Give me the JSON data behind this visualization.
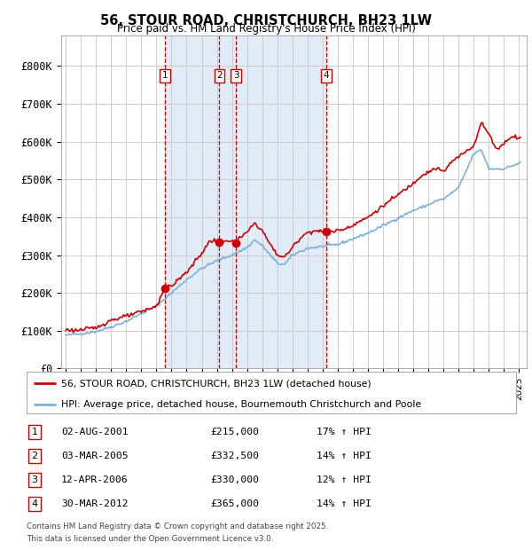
{
  "title": "56, STOUR ROAD, CHRISTCHURCH, BH23 1LW",
  "subtitle": "Price paid vs. HM Land Registry's House Price Index (HPI)",
  "legend_line1": "56, STOUR ROAD, CHRISTCHURCH, BH23 1LW (detached house)",
  "legend_line2": "HPI: Average price, detached house, Bournemouth Christchurch and Poole",
  "footer1": "Contains HM Land Registry data © Crown copyright and database right 2025.",
  "footer2": "This data is licensed under the Open Government Licence v3.0.",
  "transactions": [
    {
      "num": 1,
      "date": "02-AUG-2001",
      "price": "£215,000",
      "hpi": "17% ↑ HPI",
      "year": 2001.58
    },
    {
      "num": 2,
      "date": "03-MAR-2005",
      "price": "£332,500",
      "hpi": "14% ↑ HPI",
      "year": 2005.17
    },
    {
      "num": 3,
      "date": "12-APR-2006",
      "price": "£330,000",
      "hpi": "12% ↑ HPI",
      "year": 2006.28
    },
    {
      "num": 4,
      "date": "30-MAR-2012",
      "price": "£365,000",
      "hpi": "14% ↑ HPI",
      "year": 2012.25
    }
  ],
  "hpi_color": "#7ab0d8",
  "price_color": "#cc0000",
  "dot_color": "#cc0000",
  "vline_color": "#cc0000",
  "bg_shade_color": "#dce9f7",
  "grid_color": "#cccccc",
  "ylim": [
    0,
    880000
  ],
  "yticks": [
    0,
    100000,
    200000,
    300000,
    400000,
    500000,
    600000,
    700000,
    800000
  ],
  "ytick_labels": [
    "£0",
    "£100K",
    "£200K",
    "£300K",
    "£400K",
    "£500K",
    "£600K",
    "£700K",
    "£800K"
  ],
  "xlim_start": 1994.7,
  "xlim_end": 2025.5,
  "hpi_anchors": [
    [
      1995.0,
      88000
    ],
    [
      1996.0,
      92000
    ],
    [
      1997.0,
      98000
    ],
    [
      1998.0,
      110000
    ],
    [
      1999.0,
      125000
    ],
    [
      2000.0,
      145000
    ],
    [
      2001.0,
      165000
    ],
    [
      2002.0,
      200000
    ],
    [
      2003.0,
      235000
    ],
    [
      2004.0,
      265000
    ],
    [
      2005.0,
      285000
    ],
    [
      2006.0,
      300000
    ],
    [
      2007.0,
      320000
    ],
    [
      2007.5,
      340000
    ],
    [
      2008.0,
      325000
    ],
    [
      2009.0,
      278000
    ],
    [
      2009.5,
      275000
    ],
    [
      2010.0,
      300000
    ],
    [
      2011.0,
      318000
    ],
    [
      2012.0,
      323000
    ],
    [
      2013.0,
      328000
    ],
    [
      2014.0,
      343000
    ],
    [
      2015.0,
      358000
    ],
    [
      2016.0,
      378000
    ],
    [
      2017.0,
      398000
    ],
    [
      2018.0,
      418000
    ],
    [
      2019.0,
      433000
    ],
    [
      2019.5,
      443000
    ],
    [
      2020.0,
      448000
    ],
    [
      2021.0,
      478000
    ],
    [
      2022.0,
      568000
    ],
    [
      2022.5,
      578000
    ],
    [
      2023.0,
      528000
    ],
    [
      2024.0,
      528000
    ],
    [
      2025.0,
      543000
    ]
  ],
  "price_anchors": [
    [
      1995.0,
      103000
    ],
    [
      1995.5,
      101000
    ],
    [
      1996.0,
      102000
    ],
    [
      1997.0,
      108000
    ],
    [
      1997.5,
      118000
    ],
    [
      1998.0,
      128000
    ],
    [
      1999.0,
      138000
    ],
    [
      2000.0,
      150000
    ],
    [
      2001.0,
      165000
    ],
    [
      2001.58,
      215000
    ],
    [
      2002.0,
      218000
    ],
    [
      2003.0,
      255000
    ],
    [
      2004.0,
      305000
    ],
    [
      2004.5,
      335000
    ],
    [
      2005.0,
      340000
    ],
    [
      2005.17,
      332500
    ],
    [
      2005.5,
      335000
    ],
    [
      2006.0,
      340000
    ],
    [
      2006.28,
      330000
    ],
    [
      2006.5,
      345000
    ],
    [
      2007.0,
      360000
    ],
    [
      2007.5,
      385000
    ],
    [
      2008.0,
      365000
    ],
    [
      2008.5,
      330000
    ],
    [
      2009.0,
      300000
    ],
    [
      2009.5,
      295000
    ],
    [
      2010.0,
      320000
    ],
    [
      2010.5,
      345000
    ],
    [
      2011.0,
      360000
    ],
    [
      2011.5,
      365000
    ],
    [
      2012.0,
      360000
    ],
    [
      2012.25,
      365000
    ],
    [
      2012.5,
      362000
    ],
    [
      2013.0,
      365000
    ],
    [
      2013.5,
      370000
    ],
    [
      2014.0,
      380000
    ],
    [
      2015.0,
      400000
    ],
    [
      2016.0,
      430000
    ],
    [
      2017.0,
      460000
    ],
    [
      2017.5,
      475000
    ],
    [
      2018.0,
      490000
    ],
    [
      2018.5,
      510000
    ],
    [
      2019.0,
      520000
    ],
    [
      2019.5,
      530000
    ],
    [
      2020.0,
      520000
    ],
    [
      2020.5,
      545000
    ],
    [
      2021.0,
      560000
    ],
    [
      2021.5,
      575000
    ],
    [
      2022.0,
      590000
    ],
    [
      2022.5,
      650000
    ],
    [
      2023.0,
      620000
    ],
    [
      2023.5,
      580000
    ],
    [
      2024.0,
      595000
    ],
    [
      2024.5,
      615000
    ],
    [
      2025.0,
      610000
    ]
  ]
}
